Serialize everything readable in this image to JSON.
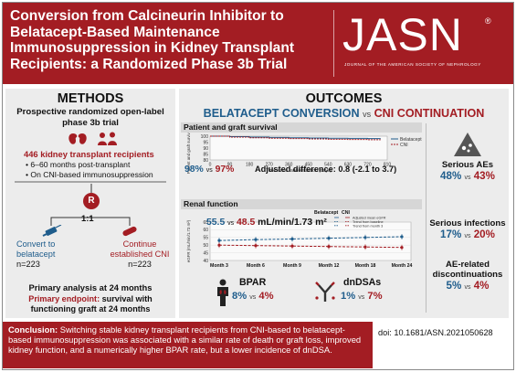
{
  "header": {
    "title": "Conversion from Calcineurin Inhibitor to Belatacept-Based Maintenance Immunosuppression in Kidney Transplant Recipients: a Randomized Phase 3b Trial",
    "logo": "JASN",
    "logo_subtitle": "JOURNAL OF THE AMERICAN SOCIETY OF NEPHROLOGY",
    "logo_reg": "®"
  },
  "methods": {
    "heading": "METHODS",
    "design": "Prospective randomized open-label phase 3b trial",
    "recipients": "446 kidney transplant recipients",
    "bullets": [
      "6–60 months post-transplant",
      "On CNI-based immunosuppression"
    ],
    "randomization": "R",
    "ratio": "1:1",
    "arm_left": {
      "label": "Convert to belatacept",
      "n": "n=223"
    },
    "arm_right": {
      "label": "Continue established CNI",
      "n": "n=223"
    },
    "primary_analysis": "Primary analysis at 24 months",
    "primary_endpoint_label": "Primary endpoint:",
    "primary_endpoint_text": "survival with functioning graft at 24 months"
  },
  "outcomes": {
    "heading": "OUTCOMES",
    "arm_a": "BELATACEPT CONVERSION",
    "vs": "vs",
    "arm_b": "CNI CONTINUATION",
    "patient_graft": {
      "bar_label": "Patient and graft survival",
      "ylabel": "Patient and graft survival (%)",
      "xlabel": "Time since randomization (days)",
      "belatacept_pct": "98%",
      "cni_pct": "97%",
      "adjusted": "Adjusted difference: 0.8 (-2.1 to 3.7)",
      "legend": [
        "Belatacept",
        "CNI"
      ]
    },
    "renal": {
      "bar_label": "Renal function",
      "ylabel": "eGFR (mL/min/1.73 m²)",
      "belatacept_value": "55.5",
      "cni_value": "48.5",
      "unit": "mL/min/1.73 m²",
      "legend_heads": [
        "Belatacept",
        "CNI"
      ],
      "legend_rows": [
        "Adjusted mean eGFR",
        "Trend from baseline",
        "Trend from month 3"
      ]
    },
    "bpar": {
      "label": "BPAR",
      "belatacept": "8%",
      "cni": "4%"
    },
    "dndsa": {
      "label": "dnDSAs",
      "belatacept": "1%",
      "cni": "7%"
    },
    "side": [
      {
        "title": "Serious AEs",
        "belatacept": "48%",
        "cni": "43%"
      },
      {
        "title": "Serious infections",
        "belatacept": "17%",
        "cni": "20%"
      },
      {
        "title": "AE-related discontinuations",
        "belatacept": "5%",
        "cni": "4%"
      }
    ]
  },
  "chart_data": [
    {
      "type": "line",
      "ylabel": "Patient and graft survival (%)",
      "xlabel": "Time since randomization (days)",
      "ylim": [
        80,
        100
      ],
      "xlim": [
        0,
        810
      ],
      "x_ticks": [
        0,
        90,
        180,
        270,
        360,
        450,
        540,
        630,
        720,
        810
      ],
      "y_ticks": [
        80,
        85,
        90,
        95,
        100
      ],
      "series": [
        {
          "name": "Belatacept",
          "x": [
            0,
            90,
            180,
            270,
            360,
            450,
            540,
            630,
            720,
            780
          ],
          "y": [
            100,
            99.6,
            99.2,
            98.9,
            98.7,
            98.5,
            98.3,
            98.2,
            98.0,
            98.0
          ]
        },
        {
          "name": "CNI",
          "x": [
            0,
            90,
            180,
            270,
            360,
            450,
            540,
            630,
            720,
            780
          ],
          "y": [
            100,
            99.2,
            98.7,
            98.3,
            98.0,
            97.7,
            97.4,
            97.2,
            97.0,
            97.0
          ]
        }
      ]
    },
    {
      "type": "line",
      "ylabel": "eGFR (mL/min/1.73 m²)",
      "ylim": [
        40,
        65
      ],
      "y_ticks": [
        40,
        45,
        50,
        55,
        60,
        65
      ],
      "categories": [
        "Month 3",
        "Month 6",
        "Month 9",
        "Month 12",
        "Month 18",
        "Month 24"
      ],
      "series": [
        {
          "name": "Belatacept",
          "values": [
            53.0,
            53.6,
            54.0,
            54.5,
            55.0,
            55.5
          ]
        },
        {
          "name": "CNI",
          "values": [
            50.0,
            49.7,
            49.4,
            49.1,
            48.8,
            48.5
          ]
        }
      ]
    }
  ],
  "conclusion": {
    "label": "Conclusion:",
    "text": "Switching stable kidney transplant recipients from CNI-based to belatacept-based immunosuppression was associated with a similar rate of death or graft loss, improved kidney function, and a numerically higher BPAR rate, but a lower incidence of dnDSA."
  },
  "doi": "doi: 10.1681/ASN.2021050628",
  "colors": {
    "brand_red": "#a31d23",
    "belatacept_blue": "#1f5d8c",
    "panel_gray": "#ececec"
  }
}
